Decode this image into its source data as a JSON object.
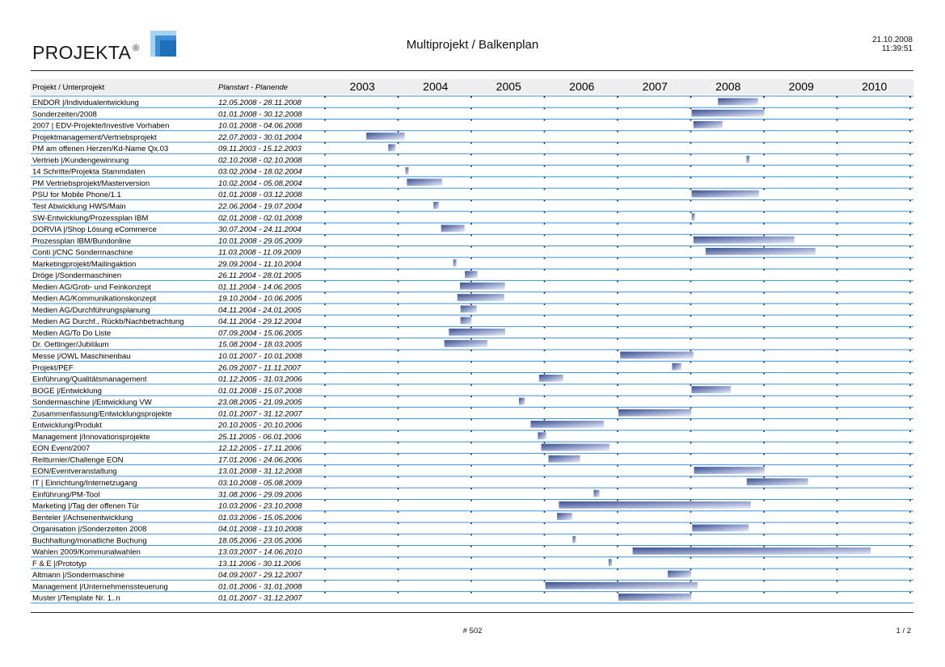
{
  "header": {
    "logo_text": "PROJEKTA",
    "logo_reg": "®",
    "title": "Multiprojekt / Balkenplan",
    "date": "21.10.2008",
    "time": "11:39:51"
  },
  "footer": {
    "doc_number": "# 502",
    "page": "1 / 2"
  },
  "colors": {
    "accent_blue": "#3d8fd6",
    "bar_dark": "#3a4f8e",
    "bar_light": "#e9ecf6"
  },
  "chart_data": {
    "type": "gantt",
    "column_headers": {
      "project": "Projekt / Unterprojekt",
      "dates": "Planstart - Planende"
    },
    "years": [
      "2003",
      "2004",
      "2005",
      "2006",
      "2007",
      "2008",
      "2009",
      "2010"
    ],
    "rows": [
      {
        "name": "ENDOR |/Individualentwicklung",
        "dates": "12.05.2008 - 28.11.2008",
        "start": "2008-05-12",
        "end": "2008-11-28"
      },
      {
        "name": "Sonderzeiten/2008",
        "dates": "01.01.2008 - 30.12.2008",
        "start": "2008-01-01",
        "end": "2008-12-30"
      },
      {
        "name": "2007 | EDV-Projekte/Investive Vorhaben",
        "dates": "10.01.2008 - 04.06.2008",
        "start": "2008-01-10",
        "end": "2008-06-04"
      },
      {
        "name": "Projektmanagement/Vertriebsprojekt",
        "dates": "22.07.2003 - 30.01.2004",
        "start": "2003-07-22",
        "end": "2004-01-30"
      },
      {
        "name": "PM am offenen Herzen/Kd-Name Qx.03",
        "dates": "09.11.2003 - 15.12.2003",
        "start": "2003-11-09",
        "end": "2003-12-15"
      },
      {
        "name": "Vertrieb |/Kundengewinnung",
        "dates": "02.10.2008 - 02.10.2008",
        "start": "2008-10-02",
        "end": "2008-10-02"
      },
      {
        "name": "14 Schritte/Projekta Stammdaten",
        "dates": "03.02.2004 - 18.02.2004",
        "start": "2004-02-03",
        "end": "2004-02-18"
      },
      {
        "name": "PM Vertriebsprojekt/Masterversion",
        "dates": "10.02.2004 - 05.08.2004",
        "start": "2004-02-10",
        "end": "2004-08-05"
      },
      {
        "name": "PSU for Mobile Phone/1.1",
        "dates": "01.01.2008 - 03.12.2008",
        "start": "2008-01-01",
        "end": "2008-12-03"
      },
      {
        "name": "Test Abwicklung HWS/Main",
        "dates": "22.06.2004 - 19.07.2004",
        "start": "2004-06-22",
        "end": "2004-07-19"
      },
      {
        "name": "SW-Entwicklung/Prozessplan IBM",
        "dates": "02.01.2008 - 02.01.2008",
        "start": "2008-01-02",
        "end": "2008-01-02"
      },
      {
        "name": "DORVIA |/Shop Lösung eCommerce",
        "dates": "30.07.2004 - 24.11.2004",
        "start": "2004-07-30",
        "end": "2004-11-24"
      },
      {
        "name": "Prozessplan IBM/Bundonline",
        "dates": "10.01.2008 - 29.05.2009",
        "start": "2008-01-10",
        "end": "2009-05-29"
      },
      {
        "name": "Conti |/CNC Sondermaschine",
        "dates": "11.03.2008 - 11.09.2009",
        "start": "2008-03-11",
        "end": "2009-09-11"
      },
      {
        "name": "Marketingprojekt/Mailingaktion",
        "dates": "29.09.2004 - 11.10.2004",
        "start": "2004-09-29",
        "end": "2004-10-11"
      },
      {
        "name": "Dröge |/Sondermaschinen",
        "dates": "26.11.2004 - 28.01.2005",
        "start": "2004-11-26",
        "end": "2005-01-28"
      },
      {
        "name": "Medien AG/Grob- und Feinkonzept",
        "dates": "01.11.2004 - 14.06.2005",
        "start": "2004-11-01",
        "end": "2005-06-14"
      },
      {
        "name": "Medien AG/Kommunikationskonzept",
        "dates": "19.10.2004 - 10.06.2005",
        "start": "2004-10-19",
        "end": "2005-06-10"
      },
      {
        "name": "Medien AG/Durchführungsplanung",
        "dates": "04.11.2004 - 24.01.2005",
        "start": "2004-11-04",
        "end": "2005-01-24"
      },
      {
        "name": "Medien AG Durchf., Rückb/Nachbetrachtung",
        "dates": "04.11.2004 - 29.12.2004",
        "start": "2004-11-04",
        "end": "2004-12-29"
      },
      {
        "name": "Medien AG/To Do Liste",
        "dates": "07.09.2004 - 15.06.2005",
        "start": "2004-09-07",
        "end": "2005-06-15"
      },
      {
        "name": "Dr. Oettinger/Jubiläum",
        "dates": "15.08.2004 - 18.03.2005",
        "start": "2004-08-15",
        "end": "2005-03-18"
      },
      {
        "name": "Messe |/OWL Maschinenbau",
        "dates": "10.01.2007 - 10.01.2008",
        "start": "2007-01-10",
        "end": "2008-01-10"
      },
      {
        "name": "Projekt/PEF",
        "dates": "26.09.2007 - 11.11.2007",
        "start": "2007-09-26",
        "end": "2007-11-11"
      },
      {
        "name": "Einführung/Qualitätsmanagement",
        "dates": "01.12.2005 - 31.03.2006",
        "start": "2005-12-01",
        "end": "2006-03-31"
      },
      {
        "name": "BOGE |/Entwicklung",
        "dates": "01.01.2008 - 15.07.2008",
        "start": "2008-01-01",
        "end": "2008-07-15"
      },
      {
        "name": "Sondermaschine |/Entwicklung VW",
        "dates": "23.08.2005 - 21.09.2005",
        "start": "2005-08-23",
        "end": "2005-09-21"
      },
      {
        "name": "Zusammenfassung/Entwicklungsprojekte",
        "dates": "01.01.2007 - 31.12.2007",
        "start": "2007-01-01",
        "end": "2007-12-31"
      },
      {
        "name": "Entwicklung/Produkt",
        "dates": "20.10.2005 - 20.10.2006",
        "start": "2005-10-20",
        "end": "2006-10-20"
      },
      {
        "name": "Management |/Innovationsprojekte",
        "dates": "25.11.2005 - 06.01.2006",
        "start": "2005-11-25",
        "end": "2006-01-06"
      },
      {
        "name": "EON Event/2007",
        "dates": "12.12.2005 - 17.11.2006",
        "start": "2005-12-12",
        "end": "2006-11-17"
      },
      {
        "name": "Reitturnier/Challenge EON",
        "dates": "17.01.2006 - 24.06.2006",
        "start": "2006-01-17",
        "end": "2006-06-24"
      },
      {
        "name": "EON/Eventveranstaltung",
        "dates": "13.01.2008 - 31.12.2008",
        "start": "2008-01-13",
        "end": "2008-12-31"
      },
      {
        "name": "IT | Einrichtung/Internetzugang",
        "dates": "03.10.2008 - 05.08.2009",
        "start": "2008-10-03",
        "end": "2009-08-05"
      },
      {
        "name": "Einführung/PM-Tool",
        "dates": "31.08.2006 - 29.09.2006",
        "start": "2006-08-31",
        "end": "2006-09-29"
      },
      {
        "name": "Marketing |/Tag der offenen Tür",
        "dates": "10.03.2006 - 23.10.2008",
        "start": "2006-03-10",
        "end": "2008-10-23"
      },
      {
        "name": "Benteler |/Achsenentwicklung",
        "dates": "01.03.2006 - 15.05.2006",
        "start": "2006-03-01",
        "end": "2006-05-15"
      },
      {
        "name": "Organisation |/Sonderzeiten 2008",
        "dates": "04.01.2008 - 13.10.2008",
        "start": "2008-01-04",
        "end": "2008-10-13"
      },
      {
        "name": "Buchhaltung/monatliche Buchung",
        "dates": "18.05.2006 - 23.05.2006",
        "start": "2006-05-18",
        "end": "2006-05-23"
      },
      {
        "name": "Wahlen 2009/Kommunalwahlen",
        "dates": "13.03.2007 - 14.06.2010",
        "start": "2007-03-13",
        "end": "2010-06-14"
      },
      {
        "name": "F & E |/Prototyp",
        "dates": "13.11.2006 - 30.11.2006",
        "start": "2006-11-13",
        "end": "2006-11-30"
      },
      {
        "name": "Altmann |/Sondermaschine",
        "dates": "04.09.2007 - 29.12.2007",
        "start": "2007-09-04",
        "end": "2007-12-29"
      },
      {
        "name": "Management |/Unternehmenssteuerung",
        "dates": "01.01.2006 - 31.01.2008",
        "start": "2006-01-01",
        "end": "2008-01-31"
      },
      {
        "name": "Muster |/Template Nr. 1..n",
        "dates": "01.01.2007 - 31.12.2007",
        "start": "2007-01-01",
        "end": "2007-12-31"
      }
    ]
  }
}
